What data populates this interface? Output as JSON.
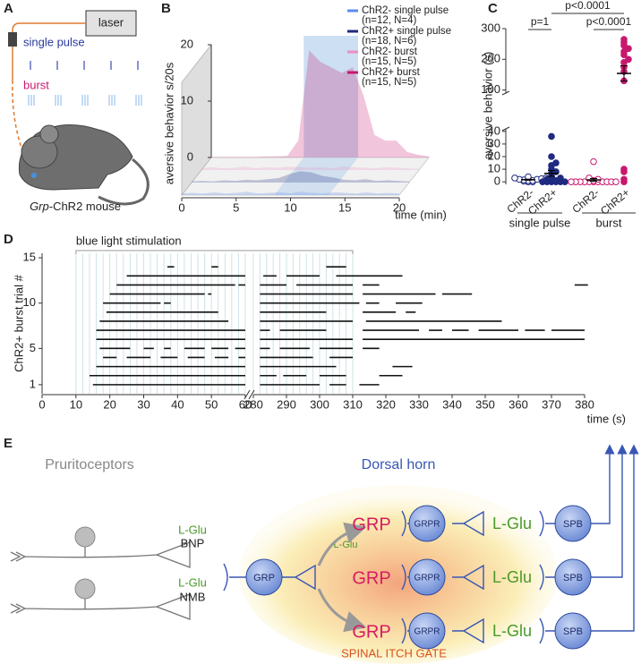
{
  "panels": [
    "A",
    "B",
    "C",
    "D",
    "E"
  ],
  "diagram_a": {
    "laser": "laser",
    "single_pulse": "single pulse",
    "burst": "burst",
    "mouse_gene": "Grp",
    "mouse_label": "-ChR2 mouse"
  },
  "chart_data": [
    {
      "type": "line3d",
      "xlabel": "time (min)",
      "ylabel": "aversive behavior s/20s",
      "x": [
        0,
        1,
        2,
        3,
        4,
        5,
        6,
        7,
        8,
        9,
        10,
        11,
        12,
        13,
        14,
        15,
        16,
        17,
        18,
        19,
        20
      ],
      "xlim": [
        0,
        20
      ],
      "xticks": [
        0,
        5,
        10,
        15,
        20
      ],
      "ylim": [
        0,
        20
      ],
      "yticks": [
        0,
        10,
        20
      ],
      "shade": [
        8.5,
        13.5
      ],
      "shade_color": "#bcd4ee",
      "series": [
        {
          "name": "ChR2- single pulse",
          "sample": "(n=12, N=4)",
          "color": "#5b8def",
          "values": [
            0.3,
            0.4,
            0.3,
            0.5,
            0.3,
            0.4,
            0.6,
            0.3,
            0.4,
            0.5,
            0.3,
            0.6,
            0.4,
            0.3,
            0.5,
            0.4,
            0.3,
            0.5,
            0.3,
            0.4,
            0.3
          ]
        },
        {
          "name": "ChR2+ single pulse",
          "sample": "(n=18, N=6)",
          "color": "#1f2a80",
          "values": [
            0.2,
            0.3,
            0.2,
            0.4,
            0.3,
            0.5,
            0.4,
            0.6,
            0.8,
            1.5,
            2,
            1.8,
            1.2,
            0.9,
            0.5,
            0.4,
            0.6,
            0.3,
            0.4,
            0.3,
            0.2
          ]
        },
        {
          "name": "ChR2- burst",
          "sample": "(n=15, N=5)",
          "color": "#ec8fc3",
          "values": [
            0.3,
            0.5,
            0.3,
            0.4,
            0.6,
            0.3,
            0.5,
            0.4,
            0.6,
            0.5,
            0.4,
            0.5,
            0.3,
            0.6,
            0.5,
            0.4,
            0.3,
            0.5,
            0.4,
            0.3,
            0.2
          ]
        },
        {
          "name": "ChR2+ burst",
          "sample": "(n=15, N=5)",
          "color": "#c8186e",
          "values": [
            0.1,
            0.1,
            0.1,
            0.1,
            0.1,
            0.2,
            0.2,
            0.3,
            3,
            19,
            17,
            16,
            15,
            16,
            11,
            4,
            3,
            3,
            1,
            0.5,
            0.2
          ]
        }
      ]
    },
    {
      "type": "dot",
      "ylabel": "aversive behavior (s)",
      "ylim": [
        -2,
        42
      ],
      "yticks": [
        0,
        10,
        20,
        30,
        40
      ],
      "ylim_upper": [
        90,
        300
      ],
      "yticks_upper": [
        100,
        200,
        300
      ],
      "comparisons": [
        {
          "label": "p=1"
        },
        {
          "label": "p<0.0001"
        },
        {
          "label": "p<0.0001"
        }
      ],
      "groups": [
        {
          "name": "single pulse",
          "categories": [
            {
              "name": "ChR2-",
              "color": "#1f2a80",
              "filled": false,
              "values": [
                0,
                0,
                0.5,
                1,
                1,
                1.5,
                2,
                2,
                2.5,
                3,
                3,
                4
              ],
              "mean": 1.7,
              "sem": 0.4
            },
            {
              "name": "ChR2+",
              "color": "#1f2a80",
              "filled": true,
              "values": [
                0,
                0,
                0,
                0,
                0,
                0,
                1,
                1,
                2,
                3,
                4,
                7,
                8,
                10,
                13,
                15,
                20,
                36
              ],
              "mean": 6.7,
              "sem": 2.3
            }
          ]
        },
        {
          "name": "burst",
          "categories": [
            {
              "name": "ChR2-",
              "color": "#c8186e",
              "filled": false,
              "values": [
                0,
                0,
                0,
                0,
                0,
                0,
                0,
                0,
                0,
                0,
                0,
                1,
                2,
                3,
                16
              ],
              "mean": 1.5,
              "sem": 1.1
            },
            {
              "name": "ChR2+",
              "color": "#c8186e",
              "filled": true,
              "values": [
                0,
                2,
                8,
                10,
                130,
                160,
                175,
                190,
                200,
                215,
                225,
                235,
                245,
                255,
                265
              ],
              "mean": 154,
              "sem": 25
            }
          ]
        }
      ]
    },
    {
      "type": "raster",
      "title": "blue light stimulation",
      "xlabel": "time (s)",
      "ylabel": "ChR2+ burst trial #",
      "xlim": [
        0,
        60
      ],
      "xlim2": [
        280,
        380
      ],
      "xticks": [
        0,
        10,
        20,
        30,
        40,
        50,
        60
      ],
      "xticks2": [
        280,
        290,
        300,
        310,
        320,
        330,
        340,
        350,
        360,
        370,
        380
      ],
      "ylim": [
        0,
        15.5
      ],
      "yticks": [
        1,
        5,
        10,
        15
      ],
      "stimulation": [
        10,
        310
      ],
      "pulse_period": 2,
      "trials": [
        [
          [
            15,
            60
          ],
          [
            282,
            300
          ],
          [
            303,
            308
          ],
          [
            312,
            318
          ]
        ],
        [
          [
            14,
            60
          ],
          [
            282,
            287
          ],
          [
            289,
            296
          ],
          [
            300,
            308
          ],
          [
            318,
            325
          ]
        ],
        [
          [
            16,
            60
          ],
          [
            282,
            305
          ],
          [
            322,
            328
          ]
        ],
        [
          [
            18,
            22
          ],
          [
            25,
            32
          ],
          [
            35,
            40
          ],
          [
            43,
            48
          ],
          [
            51,
            55
          ],
          [
            58,
            60
          ],
          [
            282,
            298
          ],
          [
            303,
            310
          ]
        ],
        [
          [
            17,
            26
          ],
          [
            30,
            33
          ],
          [
            36,
            38
          ],
          [
            42,
            48
          ],
          [
            50,
            55
          ],
          [
            57,
            60
          ],
          [
            282,
            285
          ],
          [
            288,
            297
          ],
          [
            300,
            310
          ],
          [
            313,
            318
          ]
        ],
        [
          [
            16,
            60
          ],
          [
            282,
            310
          ],
          [
            313,
            380
          ]
        ],
        [
          [
            16,
            60
          ],
          [
            282,
            285
          ],
          [
            288,
            302
          ],
          [
            313,
            330
          ],
          [
            333,
            337
          ],
          [
            340,
            345
          ],
          [
            348,
            360
          ],
          [
            362,
            368
          ],
          [
            370,
            380
          ]
        ],
        [
          [
            17,
            55
          ],
          [
            282,
            310
          ],
          [
            314,
            355
          ]
        ],
        [
          [
            19,
            52
          ],
          [
            282,
            302
          ],
          [
            313,
            323
          ],
          [
            326,
            329
          ]
        ],
        [
          [
            18,
            35
          ],
          [
            36,
            38
          ],
          [
            282,
            312
          ],
          [
            314,
            318
          ],
          [
            323,
            331
          ]
        ],
        [
          [
            20,
            48
          ],
          [
            49,
            50
          ],
          [
            282,
            310
          ],
          [
            313,
            335
          ],
          [
            337,
            346
          ]
        ],
        [
          [
            22,
            57
          ],
          [
            58,
            60
          ],
          [
            282,
            290
          ],
          [
            293,
            310
          ],
          [
            313,
            318
          ],
          [
            377,
            381
          ]
        ],
        [
          [
            25,
            60
          ],
          [
            283,
            287
          ],
          [
            290,
            300
          ],
          [
            305,
            325
          ]
        ],
        [
          [
            37,
            39
          ],
          [
            50,
            52
          ],
          [
            302,
            308
          ]
        ]
      ]
    }
  ],
  "diagram_e": {
    "pruritoceptors": "Pruritoceptors",
    "dorsal_horn": "Dorsal horn",
    "afferents": [
      {
        "transmitter": "L-Glu",
        "peptide": "BNP"
      },
      {
        "transmitter": "L-Glu",
        "peptide": "NMB"
      }
    ],
    "grp_neuron": "GRP",
    "grp_transmitter": "L-Glu",
    "channels": [
      {
        "peptide": "GRP",
        "receptor": "GRPR",
        "transmitter": "L-Glu",
        "output": "SPB"
      },
      {
        "peptide": "GRP",
        "receptor": "GRPR",
        "transmitter": "L-Glu",
        "output": "SPB"
      },
      {
        "peptide": "GRP",
        "receptor": "GRPR",
        "transmitter": "L-Glu",
        "output": "SPB"
      }
    ],
    "gate": "SPINAL ITCH GATE"
  }
}
